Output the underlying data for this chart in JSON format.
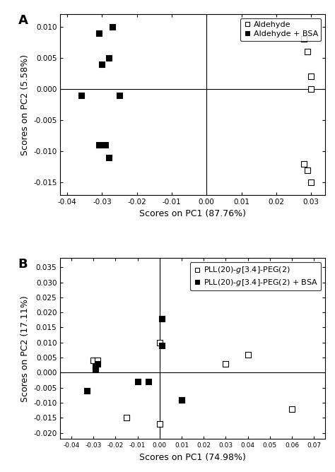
{
  "panel_A": {
    "title_label": "A",
    "xlabel": "Scores on PC1 (87.76%)",
    "ylabel": "Scores on PC2 (5.58%)",
    "xlim": [
      -0.042,
      0.034
    ],
    "ylim": [
      -0.017,
      0.012
    ],
    "xticks": [
      -0.04,
      -0.03,
      -0.02,
      -0.01,
      0.0,
      0.01,
      0.02,
      0.03
    ],
    "yticks": [
      -0.015,
      -0.01,
      -0.005,
      0.0,
      0.005,
      0.01
    ],
    "open_squares": [
      [
        0.028,
        0.008
      ],
      [
        0.029,
        0.006
      ],
      [
        0.03,
        0.002
      ],
      [
        0.03,
        0.0
      ],
      [
        0.028,
        -0.012
      ],
      [
        0.029,
        -0.013
      ],
      [
        0.03,
        -0.015
      ]
    ],
    "filled_squares": [
      [
        -0.031,
        0.009
      ],
      [
        -0.027,
        0.01
      ],
      [
        -0.03,
        0.004
      ],
      [
        -0.028,
        0.005
      ],
      [
        -0.036,
        -0.001
      ],
      [
        -0.025,
        -0.001
      ],
      [
        -0.031,
        -0.009
      ],
      [
        -0.029,
        -0.009
      ],
      [
        -0.028,
        -0.011
      ]
    ],
    "legend_open": "Aldehyde",
    "legend_filled": "Aldehyde + BSA"
  },
  "panel_B": {
    "title_label": "B",
    "xlabel": "Scores on PC1 (74.98%)",
    "ylabel": "Scores on PC2 (17.11%)",
    "xlim": [
      -0.045,
      0.075
    ],
    "ylim": [
      -0.022,
      0.038
    ],
    "xticks": [
      -0.04,
      -0.03,
      -0.02,
      -0.01,
      0.0,
      0.01,
      0.02,
      0.03,
      0.04,
      0.05,
      0.06,
      0.07
    ],
    "yticks": [
      -0.02,
      -0.015,
      -0.01,
      -0.005,
      0.0,
      0.005,
      0.01,
      0.015,
      0.02,
      0.025,
      0.03,
      0.035
    ],
    "open_squares": [
      [
        -0.03,
        0.004
      ],
      [
        -0.028,
        0.004
      ],
      [
        -0.015,
        -0.015
      ],
      [
        0.0,
        0.01
      ],
      [
        0.0,
        -0.017
      ],
      [
        0.01,
        -0.009
      ],
      [
        0.03,
        0.003
      ],
      [
        0.04,
        0.006
      ],
      [
        0.06,
        -0.012
      ]
    ],
    "filled_squares": [
      [
        -0.033,
        -0.006
      ],
      [
        -0.029,
        0.001
      ],
      [
        -0.029,
        0.002
      ],
      [
        -0.028,
        0.003
      ],
      [
        -0.01,
        -0.003
      ],
      [
        -0.005,
        -0.003
      ],
      [
        0.001,
        0.018
      ],
      [
        0.001,
        0.009
      ],
      [
        0.01,
        -0.009
      ]
    ],
    "legend_open": "PLL(20)-g[3.4]-PEG(2)",
    "legend_filled": "PLL(20)-g[3.4]-PEG(2) + BSA"
  },
  "marker_size": 6,
  "linewidth": 0.8,
  "bg_color": "#ffffff",
  "font_size": 8,
  "label_font_size": 9,
  "tick_font_size": 7.5
}
